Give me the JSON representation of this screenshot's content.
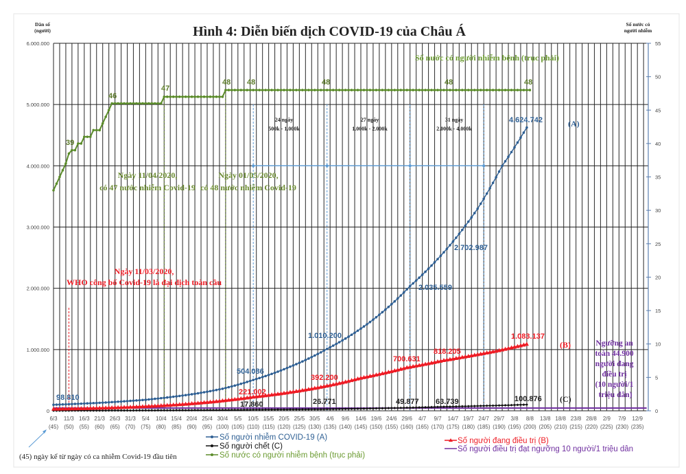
{
  "title": "Hình 4: Diễn biến dịch COVID-19 của Châu Á",
  "left_axis_title": [
    "Dân số",
    "(người)"
  ],
  "right_axis_title": [
    "Số nước có",
    "người nhiễm"
  ],
  "colors": {
    "infected": "#2e5f93",
    "treating": "#ee1c25",
    "deaths": "#111111",
    "countries": "#5b8c2a",
    "threshold": "#7030a0",
    "annotation_blue": "#5b9bd5"
  },
  "chart_data": {
    "type": "line",
    "title": "Hình 4: Diễn biến dịch COVID-19 của Châu Á",
    "ylabel": "Dân số (người)",
    "y2label": "Số nước có người nhiễm",
    "ylim": [
      0,
      6000000
    ],
    "y2lim": [
      0,
      55
    ],
    "grid": true,
    "y_ticks": [
      "0",
      "1.000.000",
      "2.000.000",
      "3.000.000",
      "4.000.000",
      "5.000.000",
      "6.000.000"
    ],
    "y2_ticks": [
      "0",
      "5",
      "10",
      "15",
      "20",
      "25",
      "30",
      "35",
      "40",
      "45",
      "50",
      "55"
    ],
    "x_ticks": [
      [
        "6/3",
        "(45)"
      ],
      [
        "11/3",
        "(50)"
      ],
      [
        "16/3",
        "(55)"
      ],
      [
        "21/3",
        "(60)"
      ],
      [
        "26/3",
        "(65)"
      ],
      [
        "31/3",
        "(70)"
      ],
      [
        "5/4",
        "(75)"
      ],
      [
        "10/4",
        "(80)"
      ],
      [
        "15/4",
        "(85)"
      ],
      [
        "20/4",
        "(90)"
      ],
      [
        "25/4",
        "(95)"
      ],
      [
        "30/4",
        "(100)"
      ],
      [
        "5/5",
        "(105)"
      ],
      [
        "10/5",
        "(110)"
      ],
      [
        "15/5",
        "(115)"
      ],
      [
        "20/5",
        "(120)"
      ],
      [
        "25/5",
        "(125)"
      ],
      [
        "30/5",
        "(130)"
      ],
      [
        "4/6",
        "(135)"
      ],
      [
        "9/6",
        "(140)"
      ],
      [
        "14/6",
        "(145)"
      ],
      [
        "19/6",
        "(150)"
      ],
      [
        "24/6",
        "(155)"
      ],
      [
        "29/6",
        "(160)"
      ],
      [
        "4/7",
        "(165)"
      ],
      [
        "9/7",
        "(170)"
      ],
      [
        "14/7",
        "(175)"
      ],
      [
        "19/7",
        "(180)"
      ],
      [
        "24/7",
        "(185)"
      ],
      [
        "29/7",
        "(190)"
      ],
      [
        "3/8",
        "(195)"
      ],
      [
        "8/8",
        "(200)"
      ],
      [
        "13/8",
        "(205)"
      ],
      [
        "18/8",
        "(210)"
      ],
      [
        "23/8",
        "(215)"
      ],
      [
        "28/8",
        "(220)"
      ],
      [
        "2/9",
        "(225)"
      ],
      [
        "7/9",
        "(230)"
      ],
      [
        "12/9",
        "(235)"
      ]
    ],
    "x_unit_note": "day index since first case",
    "series": [
      {
        "name": "Số người nhiễm COVID-19 (A)",
        "axis": "left",
        "marker": "circle",
        "points": [
          [
            45,
            98810
          ],
          [
            60,
            130000
          ],
          [
            75,
            180000
          ],
          [
            90,
            270000
          ],
          [
            100,
            360000
          ],
          [
            110,
            504086
          ],
          [
            122,
            720000
          ],
          [
            134,
            1010200
          ],
          [
            148,
            1450000
          ],
          [
            161,
            2035559
          ],
          [
            174,
            2702987
          ],
          [
            183,
            3300000
          ],
          [
            191,
            4000000
          ],
          [
            199,
            4624742
          ]
        ]
      },
      {
        "name": "Số người đang điều trị (B)",
        "axis": "left",
        "marker": "triangle",
        "points": [
          [
            45,
            25000
          ],
          [
            60,
            40000
          ],
          [
            80,
            80000
          ],
          [
            100,
            160000
          ],
          [
            110,
            221002
          ],
          [
            133,
            392200
          ],
          [
            145,
            530000
          ],
          [
            160,
            700631
          ],
          [
            172,
            818205
          ],
          [
            190,
            980000
          ],
          [
            199,
            1083137
          ]
        ]
      },
      {
        "name": "Số người chết (C)",
        "axis": "left",
        "marker": "diamond",
        "points": [
          [
            45,
            3000
          ],
          [
            80,
            8000
          ],
          [
            110,
            17860
          ],
          [
            134,
            26771
          ],
          [
            160,
            49877
          ],
          [
            170,
            63739
          ],
          [
            199,
            100876
          ]
        ]
      },
      {
        "name": "Số nước có người nhiễm bệnh (trục phải)",
        "axis": "right",
        "marker": "circle",
        "points": [
          [
            45,
            33
          ],
          [
            46,
            34
          ],
          [
            47,
            35
          ],
          [
            48,
            36
          ],
          [
            49,
            37
          ],
          [
            50,
            38.5
          ],
          [
            51,
            39
          ],
          [
            52,
            39
          ],
          [
            53,
            40
          ],
          [
            54,
            40
          ],
          [
            55,
            41
          ],
          [
            56,
            41
          ],
          [
            57,
            41
          ],
          [
            58,
            42
          ],
          [
            59,
            42
          ],
          [
            60,
            42
          ],
          [
            61,
            43
          ],
          [
            62,
            44
          ],
          [
            63,
            45
          ],
          [
            64,
            46
          ],
          [
            80,
            46
          ],
          [
            81,
            47
          ],
          [
            100,
            47
          ],
          [
            101,
            48
          ],
          [
            200,
            48
          ]
        ]
      },
      {
        "name": "Số người điều trị đạt ngưỡng 10 người/1 triệu dân",
        "axis": "left",
        "marker": "none",
        "points": [
          [
            45,
            44900
          ],
          [
            238,
            44900
          ]
        ]
      }
    ],
    "data_labels": {
      "infected": [
        "98.810",
        "504.086",
        "1.010.200",
        "2.035.559",
        "2.702.987",
        "4.624.742"
      ],
      "treating": [
        "221.002",
        "392.200",
        "700.631",
        "818.205",
        "1.083.137"
      ],
      "deaths": [
        "17.860",
        "26.771",
        "49.877",
        "63.739",
        "100.876"
      ],
      "countries": [
        "39",
        "46",
        "47",
        "48",
        "48",
        "48",
        "48",
        "48"
      ]
    },
    "series_tags": {
      "a": "(A)",
      "b": "(B)",
      "c": "(C)"
    },
    "annotations": {
      "countries_axis_note": "Số nước có người nhiễm bệnh (trục phải)",
      "apr11": [
        "Ngày 11/04/2020,",
        "có 47 nước nhiễm Covid-19"
      ],
      "may01": [
        "Ngày 01/05/2020,",
        "có 48 nước nhiễm Covid-19"
      ],
      "mar11": [
        "Ngày 11/03/2020,",
        "WHO công bố Covid-19 là đại dịch toàn cầu"
      ],
      "period1": [
        "24 ngày",
        "500k - 1.000k"
      ],
      "period2": [
        "27 ngày",
        "1.000k - 2.000k"
      ],
      "period3": [
        "31 ngày",
        "2.000k - 4.000k"
      ],
      "threshold": [
        "Ngưỡng an",
        "toàn  44.900",
        "người đang",
        "điều trị",
        "(10 người/1",
        "triệu dân)"
      ],
      "footnote": "(45) ngày kể từ ngày có ca nhiễm Covid-19 đầu tiên"
    },
    "legend": {
      "placement": "bottom",
      "items": [
        "Số người nhiễm COVID-19 (A)",
        "Số người chết (C)",
        "Số nước có người nhiễm bệnh (trục phải)",
        "Số người đang điều trị (B)",
        "Số người điều trị đạt ngưỡng 10 người/1 triệu dân"
      ]
    }
  }
}
